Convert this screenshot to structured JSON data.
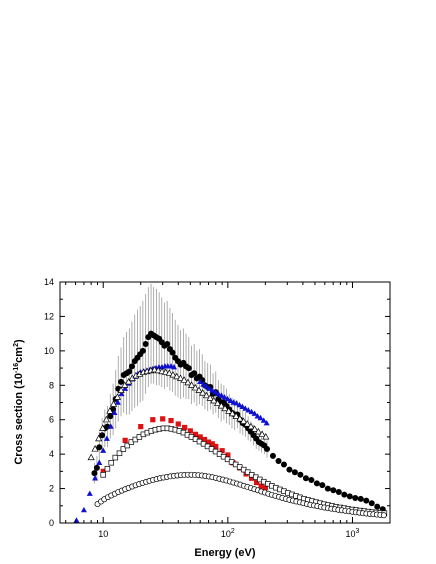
{
  "chart_data": {
    "type": "scatter",
    "title": "",
    "xlabel": "Energy (eV)",
    "ylabel_main": "Cross section (10",
    "ylabel_exp1": "-16",
    "ylabel_unit": "cm",
    "ylabel_exp2": "2",
    "ylabel_close": ")",
    "xscale": "log",
    "xlim": [
      4.5,
      2000
    ],
    "ylim": [
      0,
      14
    ],
    "y_ticks": [
      0,
      2,
      4,
      6,
      8,
      10,
      12,
      14
    ],
    "y_tick_labels": [
      "0",
      "2",
      "4",
      "6",
      "8",
      "10",
      "12",
      "14"
    ],
    "x_ticks": [
      10,
      100,
      1000
    ],
    "x_tick_labels": [
      {
        "base": "10",
        "exp": ""
      },
      {
        "base": "10",
        "exp": "2"
      },
      {
        "base": "10",
        "exp": "3"
      }
    ],
    "grid": false,
    "legend": "none",
    "series": [
      {
        "marker": "filled-circle",
        "color": "#000000",
        "x": [
          8.5,
          8.9,
          9.3,
          9.8,
          10.3,
          10.8,
          11.4,
          12.0,
          12.6,
          13.2,
          13.9,
          14.6,
          15.4,
          16.2,
          17.0,
          17.9,
          18.8,
          19.8,
          20.8,
          21.9,
          23.0,
          24.2,
          25.4,
          26.7,
          28.1,
          29.5,
          31.0,
          32.6,
          34.3,
          36.0,
          37.8,
          39.8,
          41.8,
          44.0,
          46.2,
          48.6,
          51.1,
          53.7,
          56.4,
          59.3,
          62.3,
          65.5,
          68.9,
          72.4,
          76.1,
          80.0,
          84.1,
          88.4,
          92.9,
          97.6,
          102.6,
          107.9,
          113.4,
          119.2,
          125.3,
          131.7,
          138.4,
          145.5,
          152.9,
          160.7,
          168.9,
          177.6,
          186.6,
          196.2,
          206.2,
          230,
          255,
          282,
          312,
          345,
          382,
          423,
          468,
          518,
          573,
          634,
          702,
          777,
          860,
          951,
          1053,
          1165,
          1290,
          1428,
          1580,
          1750
        ],
        "y": [
          2.9,
          3.2,
          4.4,
          5.1,
          5.5,
          5.6,
          6.2,
          6.6,
          7.2,
          7.8,
          8.2,
          8.6,
          8.7,
          8.8,
          9.1,
          9.4,
          9.6,
          9.8,
          10.0,
          10.4,
          10.8,
          11.0,
          10.9,
          10.8,
          10.7,
          10.5,
          10.3,
          10.4,
          10.1,
          9.9,
          9.6,
          9.4,
          9.2,
          9.3,
          9.1,
          9.0,
          8.6,
          8.7,
          8.4,
          8.5,
          8.3,
          8.0,
          7.9,
          7.9,
          7.5,
          7.6,
          7.2,
          7.0,
          7.0,
          6.8,
          6.6,
          6.4,
          6.3,
          6.3,
          6.0,
          5.8,
          5.7,
          5.5,
          5.3,
          5.1,
          4.9,
          4.7,
          4.6,
          4.5,
          4.3,
          3.9,
          3.6,
          3.4,
          3.1,
          2.95,
          2.8,
          2.6,
          2.5,
          2.3,
          2.2,
          2.0,
          1.9,
          1.8,
          1.65,
          1.55,
          1.45,
          1.4,
          1.3,
          1.15,
          0.95,
          0.8
        ],
        "error": [
          0.6,
          0.7,
          0.9,
          1.0,
          1.1,
          1.2,
          1.3,
          1.5,
          1.7,
          1.9,
          2.0,
          2.2,
          2.4,
          2.5,
          2.6,
          2.7,
          2.8,
          2.8,
          2.9,
          2.9,
          2.9,
          2.9,
          2.8,
          2.8,
          2.7,
          2.6,
          2.5,
          2.5,
          2.4,
          2.3,
          2.2,
          2.1,
          2.0,
          2.0,
          1.9,
          1.8,
          1.7,
          1.7,
          1.6,
          1.6,
          1.5,
          1.4,
          1.4,
          1.3,
          1.2,
          1.2,
          1.1,
          1.1,
          1.0,
          1.0,
          0.9,
          0.9,
          0.9,
          0.8,
          0.8,
          0.7,
          0.7,
          0.7,
          0.6,
          0.6,
          0.6,
          0.5,
          0.5,
          0.5,
          0.5,
          0,
          0,
          0,
          0,
          0,
          0,
          0,
          0,
          0,
          0,
          0,
          0,
          0,
          0,
          0,
          0,
          0,
          0,
          0,
          0,
          0
        ]
      },
      {
        "marker": "filled-triangle",
        "color": "#1010d0",
        "x": [
          6.1,
          7.0,
          7.8,
          8.6,
          9.3,
          10.0,
          10.7,
          11.5,
          12.3,
          13.1,
          14.0,
          15.0,
          16.0,
          17.0,
          18.0,
          19.0,
          20.0,
          21.2,
          22.4,
          23.7,
          25.0,
          26.5,
          28.0,
          29.6,
          31.3,
          33.0,
          35.0,
          37.0,
          60.0,
          63.5,
          67.0,
          71.0,
          75.0,
          79.5,
          84.0,
          89.0,
          94.0,
          99.5,
          105,
          111,
          117,
          124,
          131,
          138,
          146,
          155,
          164,
          173,
          183,
          194,
          205
        ],
        "y": [
          0.15,
          0.75,
          1.7,
          2.6,
          3.5,
          4.2,
          4.9,
          5.6,
          6.4,
          7.0,
          7.5,
          7.8,
          8.1,
          8.35,
          8.5,
          8.65,
          8.75,
          8.8,
          8.85,
          8.9,
          8.95,
          9.0,
          9.05,
          9.05,
          9.1,
          9.1,
          9.1,
          9.05,
          8.2,
          8.05,
          7.95,
          7.8,
          7.7,
          7.6,
          7.5,
          7.4,
          7.3,
          7.2,
          7.1,
          7.0,
          6.95,
          6.85,
          6.75,
          6.65,
          6.55,
          6.45,
          6.35,
          6.2,
          6.1,
          5.95,
          5.8
        ]
      },
      {
        "marker": "open-triangle",
        "color": "#000000",
        "x": [
          8.0,
          8.6,
          9.2,
          9.9,
          10.6,
          11.3,
          12.1,
          13.0,
          13.9,
          14.9,
          16.0,
          17.1,
          18.3,
          19.6,
          21.0,
          22.5,
          24.1,
          25.8,
          27.6,
          29.6,
          31.7,
          33.9,
          36.3,
          38.9,
          41.7,
          44.6,
          47.8,
          51.2,
          54.8,
          58.7,
          62.9,
          67.3,
          72.1,
          77.2,
          82.7,
          88.6,
          94.9,
          101.6,
          108.8,
          116.5,
          124.8,
          133.6,
          143.1,
          153.3,
          164.2,
          175.8,
          188.3,
          201.6
        ],
        "y": [
          3.8,
          4.3,
          4.9,
          5.5,
          6.0,
          6.5,
          6.9,
          7.3,
          7.7,
          8.0,
          8.2,
          8.4,
          8.55,
          8.65,
          8.75,
          8.8,
          8.85,
          8.9,
          8.85,
          8.8,
          8.75,
          8.7,
          8.6,
          8.5,
          8.4,
          8.3,
          8.15,
          8.0,
          7.85,
          7.7,
          7.55,
          7.4,
          7.25,
          7.1,
          6.95,
          6.8,
          6.65,
          6.5,
          6.35,
          6.2,
          6.05,
          5.9,
          5.75,
          5.6,
          5.45,
          5.3,
          5.15,
          5.0
        ]
      },
      {
        "marker": "filled-square",
        "color": "#dd1111",
        "x": [
          10.0,
          15.0,
          20.0,
          25.0,
          30.0,
          35.0,
          40.0,
          45.0,
          50.0,
          55.0,
          60.0,
          65.0,
          70.0,
          75.0,
          80.0,
          90.0,
          100.0,
          110.0,
          125.0,
          140.0,
          155.0,
          170.0,
          185.0,
          200.0
        ],
        "y": [
          3.0,
          4.8,
          5.6,
          6.0,
          6.05,
          5.95,
          5.75,
          5.55,
          5.35,
          5.15,
          5.0,
          4.85,
          4.7,
          4.6,
          4.45,
          4.2,
          3.95,
          3.5,
          3.2,
          2.85,
          2.6,
          2.35,
          2.15,
          2.05
        ]
      },
      {
        "marker": "open-square",
        "color": "#000000",
        "x": [
          10.0,
          10.8,
          11.6,
          12.5,
          13.5,
          14.5,
          15.6,
          16.8,
          18.1,
          19.5,
          21.0,
          22.6,
          24.3,
          26.2,
          28.2,
          30.4,
          32.7,
          35.2,
          37.9,
          40.8,
          44.0,
          47.4,
          51.0,
          55.0,
          59.2,
          63.8,
          68.7,
          74.0,
          79.7,
          85.8,
          92.4,
          99.5,
          107.2,
          115.5,
          124.4,
          134.0,
          144.3,
          155.4,
          167.4,
          180.3,
          194.2,
          209.2,
          225.3,
          242.6,
          261.3,
          281.5,
          303.2,
          326.5,
          351.7,
          378.8,
          408.0,
          439.4,
          473.3,
          509.8,
          549.1,
          591.4,
          637.0,
          686.1,
          739.0,
          796.0,
          857.3,
          923.4,
          994.6,
          1071,
          1154,
          1243,
          1339,
          1442,
          1553,
          1673,
          1802
        ],
        "y": [
          2.8,
          3.15,
          3.5,
          3.8,
          4.05,
          4.3,
          4.5,
          4.7,
          4.85,
          5.0,
          5.15,
          5.25,
          5.35,
          5.42,
          5.47,
          5.5,
          5.5,
          5.47,
          5.42,
          5.35,
          5.25,
          5.12,
          5.0,
          4.87,
          4.73,
          4.6,
          4.45,
          4.3,
          4.15,
          4.0,
          3.85,
          3.7,
          3.55,
          3.4,
          3.25,
          3.1,
          2.95,
          2.8,
          2.66,
          2.53,
          2.4,
          2.28,
          2.16,
          2.05,
          1.95,
          1.85,
          1.75,
          1.66,
          1.57,
          1.49,
          1.41,
          1.34,
          1.27,
          1.21,
          1.15,
          1.09,
          1.04,
          0.99,
          0.94,
          0.9,
          0.86,
          0.82,
          0.78,
          0.75,
          0.72,
          0.69,
          0.66,
          0.63,
          0.61,
          0.59,
          0.57
        ]
      },
      {
        "marker": "open-circle",
        "color": "#000000",
        "x": [
          9.0,
          9.6,
          10.2,
          10.9,
          11.6,
          12.4,
          13.2,
          14.1,
          15.0,
          16.0,
          17.1,
          18.2,
          19.4,
          20.7,
          22.1,
          23.5,
          25.1,
          26.8,
          28.5,
          30.4,
          32.5,
          34.6,
          36.9,
          39.4,
          42.0,
          44.8,
          47.8,
          51.0,
          54.4,
          58.0,
          61.9,
          66.0,
          70.4,
          75.1,
          80.1,
          85.5,
          91.2,
          97.3,
          103.8,
          110.7,
          118.1,
          126.0,
          134.4,
          143.4,
          153.0,
          163.2,
          174.1,
          185.7,
          198.1,
          211.3,
          225.4,
          240.5,
          256.6,
          273.7,
          292.0,
          311.5,
          332.3,
          354.5,
          378.2,
          403.4,
          430.4,
          459.1,
          489.8,
          522.5,
          557.4,
          594.6,
          634.3,
          676.7,
          721.9,
          770.1,
          821.6,
          876.5,
          935.0,
          997.5,
          1064,
          1135,
          1211,
          1292,
          1378,
          1470,
          1568,
          1673,
          1785
        ],
        "y": [
          1.1,
          1.25,
          1.38,
          1.5,
          1.6,
          1.7,
          1.8,
          1.88,
          1.96,
          2.04,
          2.12,
          2.19,
          2.26,
          2.33,
          2.39,
          2.45,
          2.5,
          2.55,
          2.6,
          2.64,
          2.68,
          2.71,
          2.74,
          2.76,
          2.78,
          2.79,
          2.8,
          2.8,
          2.79,
          2.78,
          2.76,
          2.73,
          2.7,
          2.66,
          2.62,
          2.57,
          2.52,
          2.47,
          2.41,
          2.35,
          2.29,
          2.23,
          2.16,
          2.1,
          2.03,
          1.96,
          1.9,
          1.83,
          1.77,
          1.7,
          1.64,
          1.58,
          1.52,
          1.46,
          1.4,
          1.35,
          1.3,
          1.25,
          1.2,
          1.15,
          1.1,
          1.06,
          1.02,
          0.98,
          0.94,
          0.9,
          0.86,
          0.83,
          0.8,
          0.77,
          0.74,
          0.71,
          0.68,
          0.65,
          0.62,
          0.6,
          0.57,
          0.55,
          0.53,
          0.51,
          0.49,
          0.47,
          0.45
        ]
      }
    ]
  }
}
